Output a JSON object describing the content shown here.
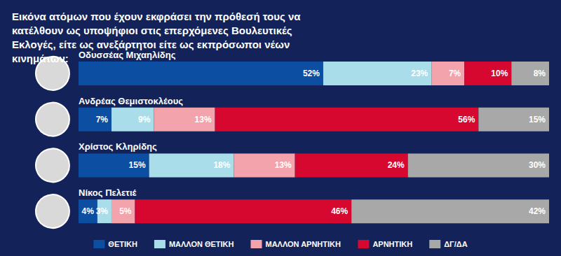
{
  "chart_data": {
    "type": "bar",
    "title": "Εικόνα ατόμων που έχουν εκφράσει την πρόθεσή τους να κατέλθουν ως υποψήφιοι στις επερχόμενες Βουλευτικές Εκλογές, είτε ως ανεξάρτητοι είτε ως εκπρόσωποι νέων κινημάτων:",
    "orientation": "horizontal",
    "stacked": true,
    "data_labels": true,
    "tick_labels": false,
    "legend": "bottom",
    "xlim": [
      0,
      100
    ],
    "categories": [
      "Οδυσσέας Μιχαηλίδης",
      "Ανδρέας Θεμιστοκλέους",
      "Χρίστος Κληρίδης",
      "Νίκος Πελετιέ"
    ],
    "series": [
      {
        "name": "ΘΕΤΙΚΗ",
        "color": "#0b4ea2",
        "values": [
          52,
          7,
          15,
          4
        ],
        "value_labels": [
          "52%",
          "7%",
          "15%",
          "4%"
        ]
      },
      {
        "name": "ΜΑΛΛΟΝ ΘΕΤΙΚΗ",
        "color": "#a9dde9",
        "values": [
          23,
          9,
          18,
          3
        ],
        "value_labels": [
          "23%",
          "9%",
          "18%",
          "3%"
        ]
      },
      {
        "name": "ΜΑΛΛΟΝ ΑΡΝΗΤΙΚΗ",
        "color": "#f2a3ac",
        "values": [
          7,
          13,
          13,
          5
        ],
        "value_labels": [
          "7%",
          "13%",
          "13%",
          "5%"
        ]
      },
      {
        "name": "ΑΡΝΗΤΙΚΗ",
        "color": "#d6082f",
        "values": [
          10,
          56,
          24,
          46
        ],
        "value_labels": [
          "10%",
          "56%",
          "24%",
          "46%"
        ]
      },
      {
        "name": "ΔΓ/ΔΑ",
        "color": "#a8a8a8",
        "values": [
          8,
          15,
          30,
          42
        ],
        "value_labels": [
          "8%",
          "15%",
          "30%",
          "42%"
        ]
      }
    ]
  }
}
